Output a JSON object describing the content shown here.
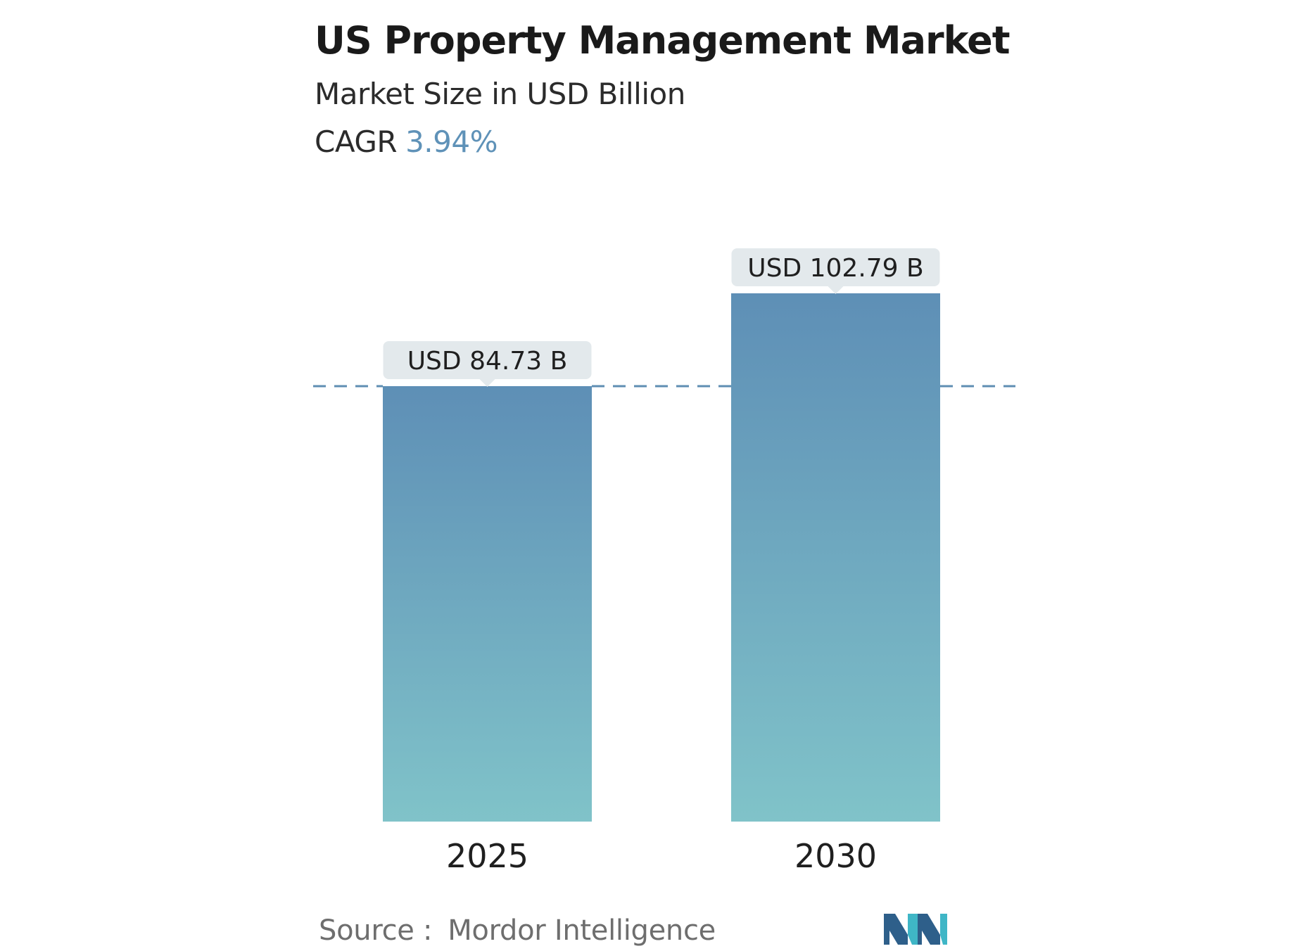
{
  "header": {
    "title": "US Property Management Market",
    "subtitle": "Market Size in USD Billion",
    "cagr_label": "CAGR",
    "cagr_value": "3.94%"
  },
  "chart_data": {
    "type": "bar",
    "categories": [
      "2025",
      "2030"
    ],
    "values": [
      84.73,
      102.79
    ],
    "data_labels": [
      "USD 84.73 B",
      "USD 102.79 B"
    ],
    "title": "US Property Management Market",
    "subtitle": "Market Size in USD Billion",
    "reference_line": {
      "value": 84.73,
      "style": "dashed"
    },
    "grid": false,
    "legend": "none"
  },
  "footer": {
    "source_label": "Source :",
    "source_name": "Mordor Intelligence"
  },
  "colors": {
    "bar_top": "#5e8fb6",
    "bar_bottom": "#80c3c9",
    "label_bg": "#e3e9ec",
    "dashed_line": "#5f8eb3",
    "cagr_accent": "#5f92b8",
    "logo_dark": "#2e5f8a",
    "logo_light": "#3fb6c6"
  }
}
